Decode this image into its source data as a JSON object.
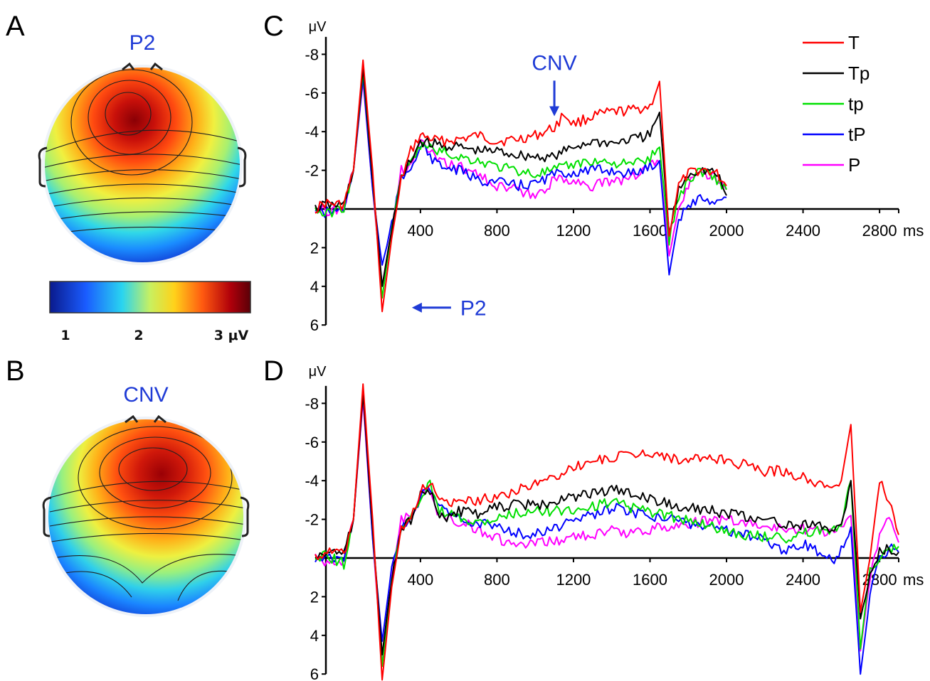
{
  "panels": {
    "A": {
      "letter": "A",
      "title": "P2",
      "colorbar": {
        "ticks": [
          "1",
          "2",
          "3 μV"
        ],
        "colors": [
          "#0a1a8c",
          "#1a5cff",
          "#29d4f0",
          "#c8f060",
          "#ffd21a",
          "#ff5a10",
          "#b0000a",
          "#5a0008"
        ]
      }
    },
    "B": {
      "letter": "B",
      "title": "CNV"
    },
    "C": {
      "letter": "C",
      "annotations": [
        {
          "label": "CNV",
          "type": "arrow-down",
          "x_ms": 1100,
          "y_uv": -4.8
        },
        {
          "label": "P2",
          "type": "arrow-left",
          "x_ms": 400,
          "y_uv": 5.1
        }
      ]
    },
    "D": {
      "letter": "D"
    }
  },
  "legend": [
    {
      "label": "T",
      "color": "#ff0000"
    },
    {
      "label": "Tp",
      "color": "#000000"
    },
    {
      "label": "tp",
      "color": "#00e000"
    },
    {
      "label": "tP",
      "color": "#0000ff"
    },
    {
      "label": "P",
      "color": "#ff00ff"
    }
  ],
  "chart_data": [
    {
      "panel": "C",
      "type": "line",
      "ylabel": "μV",
      "xlabel": "ms",
      "x_ticks": [
        400,
        800,
        1200,
        1600,
        2000,
        2400,
        2800
      ],
      "y_ticks": [
        -8,
        -6,
        -4,
        -2,
        2,
        4,
        6
      ],
      "xlim": [
        -150,
        2900
      ],
      "ylim": [
        6,
        -9
      ],
      "y_inverted": true,
      "series": [
        {
          "name": "T",
          "color": "#ff0000",
          "x": [
            -150,
            -100,
            0,
            50,
            100,
            150,
            200,
            250,
            300,
            350,
            400,
            500,
            600,
            700,
            800,
            900,
            1000,
            1100,
            1150,
            1200,
            1300,
            1400,
            1500,
            1600,
            1650,
            1700,
            1750,
            1800,
            1850,
            1900,
            1950,
            2000
          ],
          "y": [
            0,
            -0.3,
            -0.2,
            -2,
            -7.7,
            -2,
            5.3,
            1.5,
            -1.5,
            -3,
            -3.8,
            -3.5,
            -3.6,
            -3.8,
            -3.5,
            -3.6,
            -3.8,
            -4.2,
            -4.9,
            -4.4,
            -4.8,
            -5,
            -5.1,
            -5.3,
            -6.6,
            1.4,
            -1.2,
            -1.8,
            -2,
            -2,
            -1.8,
            -1.2
          ]
        },
        {
          "name": "Tp",
          "color": "#000000",
          "x": [
            -150,
            -100,
            0,
            50,
            100,
            150,
            200,
            250,
            300,
            350,
            400,
            500,
            600,
            700,
            800,
            900,
            1000,
            1100,
            1200,
            1300,
            1400,
            1500,
            1600,
            1650,
            1700,
            1750,
            1800,
            1850,
            1900,
            1950,
            2000
          ],
          "y": [
            0,
            -0.2,
            -0.2,
            -2,
            -7.3,
            -1.5,
            4,
            1,
            -1.5,
            -2.5,
            -3.5,
            -3.3,
            -3.2,
            -3,
            -3,
            -2.8,
            -2.7,
            -2.7,
            -3.2,
            -3.5,
            -3.4,
            -3.6,
            -3.8,
            -5,
            1.3,
            -1,
            -1.8,
            -2,
            -2,
            -1.8,
            -0.7
          ]
        },
        {
          "name": "tp",
          "color": "#00e000",
          "x": [
            -150,
            -100,
            0,
            50,
            100,
            150,
            200,
            250,
            300,
            350,
            400,
            500,
            600,
            700,
            800,
            900,
            1000,
            1100,
            1200,
            1300,
            1400,
            1500,
            1600,
            1650,
            1700,
            1750,
            1800,
            1850,
            1900,
            1950,
            2000
          ],
          "y": [
            0,
            0.3,
            -0.1,
            -2,
            -7.1,
            -1.5,
            4.6,
            1,
            -1.8,
            -2.3,
            -3.3,
            -3,
            -2.7,
            -2.5,
            -2.2,
            -2,
            -1.8,
            -2,
            -2.3,
            -2.5,
            -2.4,
            -2.3,
            -2.6,
            -3.2,
            1.6,
            -0.6,
            -1.5,
            -1.9,
            -2,
            -1.5,
            -1
          ]
        },
        {
          "name": "tP",
          "color": "#0000ff",
          "x": [
            -150,
            -100,
            0,
            50,
            100,
            150,
            200,
            250,
            300,
            350,
            400,
            500,
            600,
            700,
            800,
            900,
            1000,
            1100,
            1200,
            1300,
            1400,
            1500,
            1600,
            1650,
            1700,
            1750,
            1800,
            1850,
            1900,
            1950,
            2000
          ],
          "y": [
            0,
            0.2,
            0,
            -2,
            -6.8,
            -1,
            3,
            0.8,
            -1.5,
            -2.2,
            -3.3,
            -2.2,
            -2,
            -1.5,
            -1.4,
            -1.2,
            -1.3,
            -1.8,
            -1.9,
            -2,
            -2,
            -1.8,
            -2.2,
            -2.5,
            3.4,
            0.5,
            -0.2,
            -0.5,
            -0.5,
            -0.4,
            -0.6
          ]
        },
        {
          "name": "P",
          "color": "#ff00ff",
          "x": [
            -150,
            -100,
            0,
            50,
            100,
            150,
            200,
            250,
            300,
            350,
            400,
            500,
            600,
            700,
            800,
            900,
            1000,
            1100,
            1200,
            1300,
            1400,
            1500,
            1600,
            1650,
            1700,
            1750,
            1800,
            1850,
            1900,
            1950,
            2000
          ],
          "y": [
            0,
            0.1,
            -0.1,
            -2,
            -6.6,
            -1,
            4,
            1,
            -2,
            -2.2,
            -3.5,
            -2.4,
            -2.2,
            -1.8,
            -1.2,
            -1,
            -0.6,
            -1.5,
            -1.5,
            -1.2,
            -1.4,
            -1.6,
            -2.3,
            -2.4,
            2.3,
            0,
            -1.2,
            -2,
            -1.8,
            -1.6,
            -1
          ]
        }
      ]
    },
    {
      "panel": "D",
      "type": "line",
      "ylabel": "μV",
      "xlabel": "ms",
      "x_ticks": [
        400,
        800,
        1200,
        1600,
        2000,
        2400,
        2800
      ],
      "y_ticks": [
        -8,
        -6,
        -4,
        -2,
        2,
        4,
        6
      ],
      "xlim": [
        -150,
        2900
      ],
      "ylim": [
        6,
        -9
      ],
      "y_inverted": true,
      "series": [
        {
          "name": "T",
          "color": "#ff0000",
          "x": [
            -150,
            -100,
            0,
            50,
            100,
            150,
            200,
            250,
            300,
            350,
            400,
            450,
            500,
            600,
            700,
            800,
            900,
            1000,
            1100,
            1200,
            1300,
            1400,
            1500,
            1600,
            1700,
            1800,
            1900,
            2000,
            2100,
            2200,
            2300,
            2400,
            2500,
            2550,
            2600,
            2650,
            2700,
            2750,
            2800,
            2850,
            2900
          ],
          "y": [
            0,
            -0.3,
            -0.2,
            -2,
            -9,
            -2,
            6.3,
            1.5,
            -1.5,
            -2,
            -3.5,
            -3.8,
            -3,
            -2.8,
            -3,
            -3.2,
            -3.5,
            -3.8,
            -4.2,
            -4.7,
            -5,
            -5.2,
            -5.3,
            -5.5,
            -5.2,
            -5,
            -5.2,
            -5,
            -4.8,
            -4.5,
            -4.5,
            -4.2,
            -3.8,
            -3.5,
            -4,
            -6.9,
            2.8,
            0,
            -4,
            -3,
            -1.2
          ]
        },
        {
          "name": "Tp",
          "color": "#000000",
          "x": [
            -150,
            -100,
            0,
            50,
            100,
            150,
            200,
            250,
            300,
            350,
            400,
            450,
            500,
            600,
            700,
            800,
            900,
            1000,
            1100,
            1200,
            1300,
            1400,
            1500,
            1600,
            1700,
            1800,
            1900,
            2000,
            2100,
            2200,
            2300,
            2400,
            2500,
            2550,
            2600,
            2650,
            2700,
            2750,
            2800,
            2850,
            2900
          ],
          "y": [
            0,
            -0.3,
            -0.2,
            -2,
            -8.5,
            -1.5,
            5,
            1,
            -1.5,
            -2,
            -3.3,
            -3.5,
            -2,
            -2.4,
            -2.3,
            -2.6,
            -2.8,
            -2.7,
            -2.9,
            -3.2,
            -3.3,
            -3.6,
            -3.3,
            -3,
            -2.8,
            -2.6,
            -2.5,
            -2.3,
            -2.1,
            -2,
            -1.8,
            -1.7,
            -1.6,
            -1.5,
            -1.6,
            -4,
            3,
            1,
            -0.3,
            -0.5,
            -0.3
          ]
        },
        {
          "name": "tp",
          "color": "#00e000",
          "x": [
            -150,
            -100,
            0,
            50,
            100,
            150,
            200,
            250,
            300,
            350,
            400,
            450,
            500,
            600,
            700,
            800,
            900,
            1000,
            1100,
            1200,
            1300,
            1400,
            1500,
            1600,
            1700,
            1800,
            1900,
            2000,
            2100,
            2200,
            2300,
            2400,
            2500,
            2550,
            2600,
            2650,
            2700,
            2750,
            2800,
            2850,
            2900
          ],
          "y": [
            0,
            -0.2,
            0.3,
            -2,
            -8.7,
            -1.5,
            5.6,
            1,
            -1.5,
            -2,
            -3.2,
            -3.9,
            -2.5,
            -2,
            -1.8,
            -2,
            -2.3,
            -2.5,
            -2.4,
            -2.5,
            -2.7,
            -2.9,
            -2.6,
            -2.4,
            -2.2,
            -1.9,
            -1.7,
            -1.4,
            -1.2,
            -1.1,
            -1,
            -1.3,
            -1.4,
            -1.5,
            -1.8,
            -4,
            4.7,
            0.5,
            0,
            -0.4,
            -0.6
          ]
        },
        {
          "name": "tP",
          "color": "#0000ff",
          "x": [
            -150,
            -100,
            0,
            50,
            100,
            150,
            200,
            250,
            300,
            350,
            400,
            450,
            500,
            600,
            700,
            800,
            900,
            1000,
            1100,
            1200,
            1300,
            1400,
            1500,
            1600,
            1700,
            1800,
            1900,
            2000,
            2100,
            2200,
            2300,
            2400,
            2500,
            2550,
            2600,
            2650,
            2700,
            2750,
            2800,
            2850,
            2900
          ],
          "y": [
            0,
            -0.1,
            0,
            -2,
            -8.6,
            -1,
            4.3,
            0.5,
            -1.5,
            -2,
            -3.2,
            -3.6,
            -2.7,
            -2,
            -1.8,
            -1.6,
            -1.3,
            -1.2,
            -1.5,
            -1.9,
            -2.2,
            -2.6,
            -2.4,
            -2.2,
            -2.1,
            -1.8,
            -1.6,
            -1.4,
            -1.2,
            -1,
            -0.4,
            -0.8,
            -0.2,
            0.2,
            -0.5,
            -1.6,
            6,
            2,
            0,
            -0.5,
            -0.3
          ]
        },
        {
          "name": "P",
          "color": "#ff00ff",
          "x": [
            -150,
            -100,
            0,
            50,
            100,
            150,
            200,
            250,
            300,
            350,
            400,
            450,
            500,
            600,
            700,
            800,
            900,
            1000,
            1100,
            1200,
            1300,
            1400,
            1500,
            1600,
            1700,
            1800,
            1900,
            2000,
            2100,
            2200,
            2300,
            2400,
            2500,
            2550,
            2600,
            2650,
            2700,
            2750,
            2800,
            2850,
            2900
          ],
          "y": [
            0,
            0.2,
            0.1,
            -2,
            -8.2,
            -1,
            5.3,
            1,
            -2,
            -2.2,
            -3.3,
            -3.4,
            -2.2,
            -1.9,
            -1.5,
            -1,
            -0.6,
            -0.7,
            -0.9,
            -1.1,
            -1.2,
            -1.4,
            -1.3,
            -1.5,
            -1.6,
            -1.8,
            -1.9,
            -2,
            -1.8,
            -1.6,
            -1.5,
            -1.5,
            -1.4,
            -1.3,
            -1.5,
            -2.2,
            4.8,
            1,
            -1,
            -2.3,
            -0.8
          ]
        }
      ]
    }
  ]
}
